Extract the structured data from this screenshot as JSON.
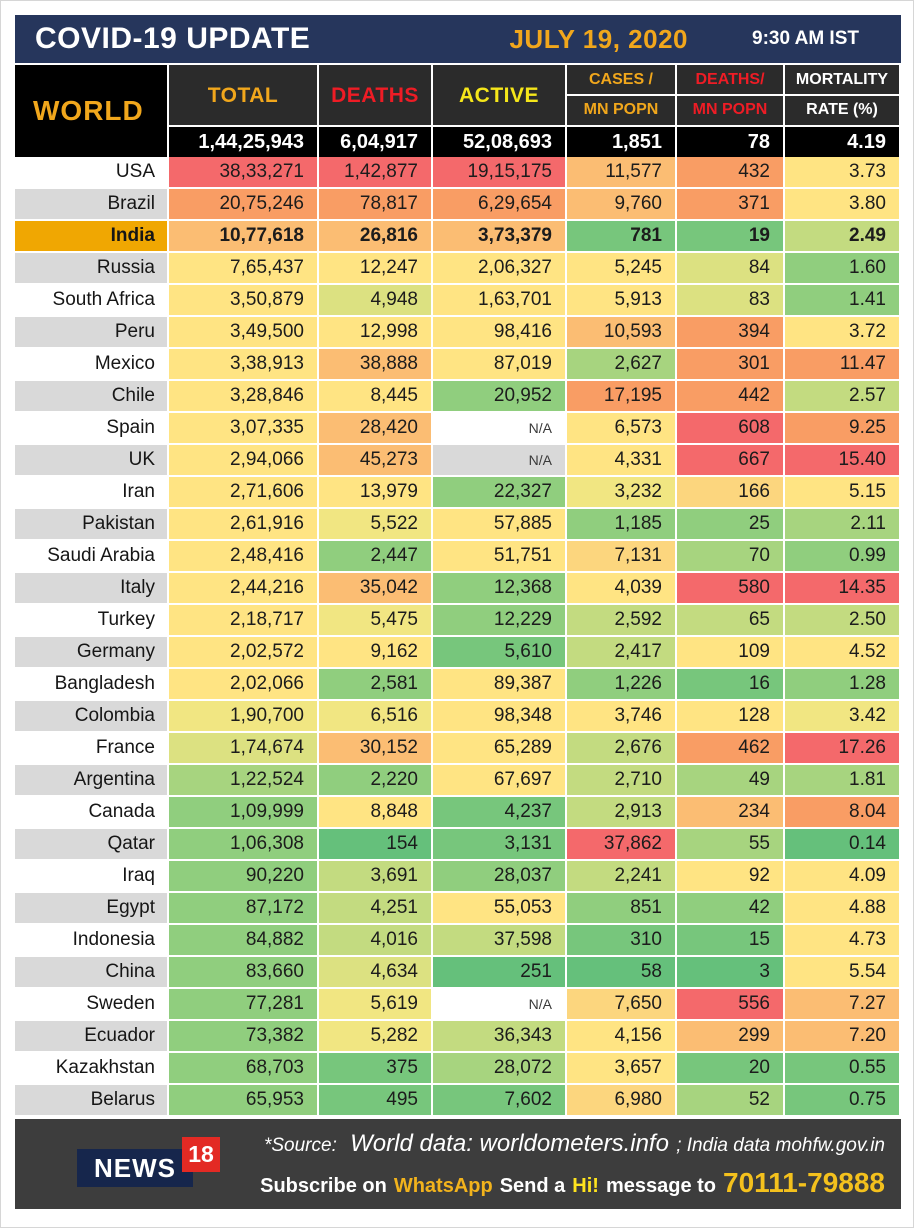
{
  "title_bar": {
    "title": "COVID-19 UPDATE",
    "date": "JULY 19, 2020",
    "time": "9:30 AM IST"
  },
  "colors": {
    "navy": "#26365c",
    "gold_text": "#f1a71c",
    "red_text": "#ee1c25",
    "active_yellow": "#f5e61a",
    "header_bg": "#2b2b2b",
    "black": "#000000",
    "row_gray": "#d9d9d9",
    "india_gold": "#f0a702",
    "footer_bg": "#3d3d3d",
    "logo_navy": "#16264c",
    "logo_red": "#e32a24"
  },
  "chart_data": {
    "type": "table",
    "title": "COVID-19 UPDATE",
    "world_label": "WORLD",
    "columns": [
      {
        "line1": "TOTAL",
        "line2": "",
        "color": "#f1a71c"
      },
      {
        "line1": "DEATHS",
        "line2": "",
        "color": "#ee1c25"
      },
      {
        "line1": "ACTIVE",
        "line2": "",
        "color": "#f5e61a"
      },
      {
        "line1": "CASES /",
        "line2": "MN POPN",
        "color": "#f1a71c"
      },
      {
        "line1": "DEATHS/",
        "line2": "MN POPN",
        "color": "#ee1c25"
      },
      {
        "line1": "MORTALITY",
        "line2": "RATE (%)",
        "color": "#ffffff"
      }
    ],
    "world_row": [
      "1,44,25,943",
      "6,04,917",
      "52,08,693",
      "1,851",
      "78",
      "4.19"
    ],
    "palette": {
      "R": "#f4696b",
      "O": "#f99d64",
      "LO": "#fbbd73",
      "AM": "#fcd67e",
      "Y": "#ffe483",
      "LY": "#f1e682",
      "YG": "#dce181",
      "LG": "#c3db80",
      "LG2": "#a7d47f",
      "G": "#90ce7e",
      "DG": "#77c67c",
      "DG2": "#65c07b",
      "WH": "#ffffff",
      "GY": "#d9d9d9"
    },
    "rows": [
      {
        "country": "USA",
        "bg": "white",
        "bold": false,
        "values": [
          "38,33,271",
          "1,42,877",
          "19,15,175",
          "11,577",
          "432",
          "3.73"
        ],
        "colors": [
          "R",
          "R",
          "R",
          "LO",
          "O",
          "Y"
        ]
      },
      {
        "country": "Brazil",
        "bg": "gray",
        "bold": false,
        "values": [
          "20,75,246",
          "78,817",
          "6,29,654",
          "9,760",
          "371",
          "3.80"
        ],
        "colors": [
          "O",
          "O",
          "O",
          "LO",
          "O",
          "Y"
        ]
      },
      {
        "country": "India",
        "bg": "gold",
        "bold": true,
        "values": [
          "10,77,618",
          "26,816",
          "3,73,379",
          "781",
          "19",
          "2.49"
        ],
        "colors": [
          "LO",
          "LO",
          "LO",
          "DG",
          "DG",
          "LG"
        ]
      },
      {
        "country": "Russia",
        "bg": "gray",
        "bold": false,
        "values": [
          "7,65,437",
          "12,247",
          "2,06,327",
          "5,245",
          "84",
          "1.60"
        ],
        "colors": [
          "Y",
          "Y",
          "Y",
          "Y",
          "YG",
          "G"
        ]
      },
      {
        "country": "South Africa",
        "bg": "white",
        "bold": false,
        "values": [
          "3,50,879",
          "4,948",
          "1,63,701",
          "5,913",
          "83",
          "1.41"
        ],
        "colors": [
          "Y",
          "YG",
          "Y",
          "Y",
          "YG",
          "G"
        ]
      },
      {
        "country": "Peru",
        "bg": "gray",
        "bold": false,
        "values": [
          "3,49,500",
          "12,998",
          "98,416",
          "10,593",
          "394",
          "3.72"
        ],
        "colors": [
          "Y",
          "Y",
          "Y",
          "LO",
          "O",
          "Y"
        ]
      },
      {
        "country": "Mexico",
        "bg": "white",
        "bold": false,
        "values": [
          "3,38,913",
          "38,888",
          "87,019",
          "2,627",
          "301",
          "11.47"
        ],
        "colors": [
          "Y",
          "LO",
          "Y",
          "LG2",
          "O",
          "O"
        ]
      },
      {
        "country": "Chile",
        "bg": "gray",
        "bold": false,
        "values": [
          "3,28,846",
          "8,445",
          "20,952",
          "17,195",
          "442",
          "2.57"
        ],
        "colors": [
          "Y",
          "Y",
          "G",
          "O",
          "O",
          "LG"
        ]
      },
      {
        "country": "Spain",
        "bg": "white",
        "bold": false,
        "values": [
          "3,07,335",
          "28,420",
          "N/A",
          "6,573",
          "608",
          "9.25"
        ],
        "colors": [
          "Y",
          "LO",
          "WH",
          "Y",
          "R",
          "O"
        ]
      },
      {
        "country": "UK",
        "bg": "gray",
        "bold": false,
        "values": [
          "2,94,066",
          "45,273",
          "N/A",
          "4,331",
          "667",
          "15.40"
        ],
        "colors": [
          "Y",
          "LO",
          "GY",
          "Y",
          "R",
          "R"
        ]
      },
      {
        "country": "Iran",
        "bg": "white",
        "bold": false,
        "values": [
          "2,71,606",
          "13,979",
          "22,327",
          "3,232",
          "166",
          "5.15"
        ],
        "colors": [
          "Y",
          "Y",
          "G",
          "LY",
          "AM",
          "Y"
        ]
      },
      {
        "country": "Pakistan",
        "bg": "gray",
        "bold": false,
        "values": [
          "2,61,916",
          "5,522",
          "57,885",
          "1,185",
          "25",
          "2.11"
        ],
        "colors": [
          "Y",
          "LY",
          "Y",
          "G",
          "G",
          "LG2"
        ]
      },
      {
        "country": "Saudi Arabia",
        "bg": "white",
        "bold": false,
        "values": [
          "2,48,416",
          "2,447",
          "51,751",
          "7,131",
          "70",
          "0.99"
        ],
        "colors": [
          "Y",
          "G",
          "Y",
          "AM",
          "LG2",
          "G"
        ]
      },
      {
        "country": "Italy",
        "bg": "gray",
        "bold": false,
        "values": [
          "2,44,216",
          "35,042",
          "12,368",
          "4,039",
          "580",
          "14.35"
        ],
        "colors": [
          "Y",
          "LO",
          "G",
          "Y",
          "R",
          "R"
        ]
      },
      {
        "country": "Turkey",
        "bg": "white",
        "bold": false,
        "values": [
          "2,18,717",
          "5,475",
          "12,229",
          "2,592",
          "65",
          "2.50"
        ],
        "colors": [
          "Y",
          "LY",
          "G",
          "LG",
          "LG",
          "LG"
        ]
      },
      {
        "country": "Germany",
        "bg": "gray",
        "bold": false,
        "values": [
          "2,02,572",
          "9,162",
          "5,610",
          "2,417",
          "109",
          "4.52"
        ],
        "colors": [
          "Y",
          "Y",
          "DG",
          "LG",
          "Y",
          "Y"
        ]
      },
      {
        "country": "Bangladesh",
        "bg": "white",
        "bold": false,
        "values": [
          "2,02,066",
          "2,581",
          "89,387",
          "1,226",
          "16",
          "1.28"
        ],
        "colors": [
          "Y",
          "G",
          "Y",
          "G",
          "DG",
          "G"
        ]
      },
      {
        "country": "Colombia",
        "bg": "gray",
        "bold": false,
        "values": [
          "1,90,700",
          "6,516",
          "98,348",
          "3,746",
          "128",
          "3.42"
        ],
        "colors": [
          "LY",
          "LY",
          "Y",
          "Y",
          "Y",
          "LY"
        ]
      },
      {
        "country": "France",
        "bg": "white",
        "bold": false,
        "values": [
          "1,74,674",
          "30,152",
          "65,289",
          "2,676",
          "462",
          "17.26"
        ],
        "colors": [
          "YG",
          "LO",
          "Y",
          "LG",
          "O",
          "R"
        ]
      },
      {
        "country": "Argentina",
        "bg": "gray",
        "bold": false,
        "values": [
          "1,22,524",
          "2,220",
          "67,697",
          "2,710",
          "49",
          "1.81"
        ],
        "colors": [
          "LG2",
          "G",
          "Y",
          "LG",
          "LG2",
          "LG2"
        ]
      },
      {
        "country": "Canada",
        "bg": "white",
        "bold": false,
        "values": [
          "1,09,999",
          "8,848",
          "4,237",
          "2,913",
          "234",
          "8.04"
        ],
        "colors": [
          "G",
          "Y",
          "DG",
          "LG",
          "LO",
          "O"
        ]
      },
      {
        "country": "Qatar",
        "bg": "gray",
        "bold": false,
        "values": [
          "1,06,308",
          "154",
          "3,131",
          "37,862",
          "55",
          "0.14"
        ],
        "colors": [
          "G",
          "DG2",
          "DG",
          "R",
          "LG2",
          "DG2"
        ]
      },
      {
        "country": "Iraq",
        "bg": "white",
        "bold": false,
        "values": [
          "90,220",
          "3,691",
          "28,037",
          "2,241",
          "92",
          "4.09"
        ],
        "colors": [
          "G",
          "LG",
          "G",
          "LG",
          "Y",
          "Y"
        ]
      },
      {
        "country": "Egypt",
        "bg": "gray",
        "bold": false,
        "values": [
          "87,172",
          "4,251",
          "55,053",
          "851",
          "42",
          "4.88"
        ],
        "colors": [
          "G",
          "LG",
          "Y",
          "G",
          "G",
          "Y"
        ]
      },
      {
        "country": "Indonesia",
        "bg": "white",
        "bold": false,
        "values": [
          "84,882",
          "4,016",
          "37,598",
          "310",
          "15",
          "4.73"
        ],
        "colors": [
          "G",
          "LG",
          "LG",
          "DG",
          "DG",
          "Y"
        ]
      },
      {
        "country": "China",
        "bg": "gray",
        "bold": false,
        "values": [
          "83,660",
          "4,634",
          "251",
          "58",
          "3",
          "5.54"
        ],
        "colors": [
          "G",
          "YG",
          "DG2",
          "DG2",
          "DG2",
          "Y"
        ]
      },
      {
        "country": "Sweden",
        "bg": "white",
        "bold": false,
        "values": [
          "77,281",
          "5,619",
          "N/A",
          "7,650",
          "556",
          "7.27"
        ],
        "colors": [
          "G",
          "LY",
          "WH",
          "AM",
          "R",
          "LO"
        ]
      },
      {
        "country": "Ecuador",
        "bg": "gray",
        "bold": false,
        "values": [
          "73,382",
          "5,282",
          "36,343",
          "4,156",
          "299",
          "7.20"
        ],
        "colors": [
          "G",
          "LY",
          "LG",
          "Y",
          "LO",
          "LO"
        ]
      },
      {
        "country": "Kazakhstan",
        "bg": "white",
        "bold": false,
        "values": [
          "68,703",
          "375",
          "28,072",
          "3,657",
          "20",
          "0.55"
        ],
        "colors": [
          "G",
          "DG",
          "LG2",
          "Y",
          "DG",
          "DG"
        ]
      },
      {
        "country": "Belarus",
        "bg": "gray",
        "bold": false,
        "values": [
          "65,953",
          "495",
          "7,602",
          "6,980",
          "52",
          "0.75"
        ],
        "colors": [
          "G",
          "DG",
          "DG",
          "AM",
          "LG2",
          "DG"
        ]
      }
    ]
  },
  "footer": {
    "logo_text": "NEWS",
    "logo_number": "18",
    "source_prefix": "*Source:",
    "source_main": "World data: worldometers.info",
    "source_suffix": "; India data mohfw.gov.in",
    "subscribe_1": "Subscribe on",
    "subscribe_whatsapp": "WhatsApp",
    "subscribe_2": "Send a",
    "subscribe_hi": "Hi!",
    "subscribe_3": "message to",
    "subscribe_number": "70111-79888"
  }
}
